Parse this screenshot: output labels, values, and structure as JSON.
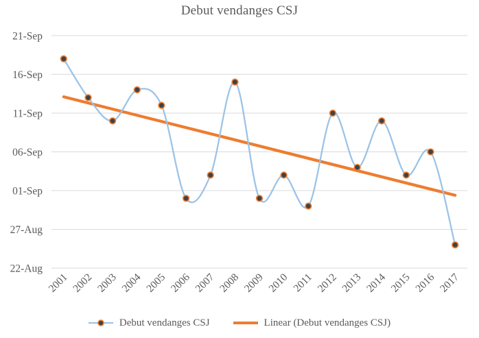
{
  "chart_data": {
    "type": "line",
    "title": "Debut vendanges CSJ",
    "x_label": "",
    "y_label": "",
    "value_unit": "harvest start date (days after 22-Aug)",
    "categories": [
      "2001",
      "2002",
      "2003",
      "2004",
      "2005",
      "2006",
      "2007",
      "2008",
      "2009",
      "2010",
      "2011",
      "2012",
      "2013",
      "2014",
      "2015",
      "2016",
      "2017"
    ],
    "series": [
      {
        "name": "Debut vendanges CSJ",
        "style": "smooth-line-with-markers",
        "dates": [
          "18-Sep",
          "13-Sep",
          "10-Sep",
          "14-Sep",
          "12-Sep",
          "31-Aug",
          "03-Sep",
          "15-Sep",
          "31-Aug",
          "03-Sep",
          "30-Aug",
          "11-Sep",
          "04-Sep",
          "10-Sep",
          "03-Sep",
          "06-Sep",
          "25-Aug"
        ],
        "values": [
          27,
          22,
          19,
          23,
          21,
          9,
          12,
          24,
          9,
          12,
          8,
          20,
          13,
          19,
          12,
          15,
          3
        ]
      }
    ],
    "trendline": {
      "name": "Linear (Debut vendanges CSJ)",
      "start_value": 22.1,
      "end_value": 9.4
    },
    "y_axis": {
      "tick_labels": [
        "21-Sep",
        "16-Sep",
        "11-Sep",
        "06-Sep",
        "01-Sep",
        "27-Aug",
        "22-Aug"
      ],
      "tick_values": [
        30,
        25,
        20,
        15,
        10,
        5,
        0
      ],
      "min": 0,
      "max": 30,
      "grid": true
    },
    "x_axis": {
      "tick_rotation_deg": 45
    },
    "legend": {
      "position": "bottom",
      "items": [
        {
          "label": "Debut vendanges CSJ",
          "sample": "line-with-marker"
        },
        {
          "label": "Linear (Debut vendanges CSJ)",
          "sample": "line"
        }
      ]
    },
    "colors": {
      "series_line": "#9DC3E6",
      "marker_fill": "#424242",
      "marker_stroke": "#ED7D31",
      "trend_line": "#ED7D31",
      "gridline": "#D9D9D9",
      "text": "#595959",
      "background": "#FFFFFF"
    }
  }
}
